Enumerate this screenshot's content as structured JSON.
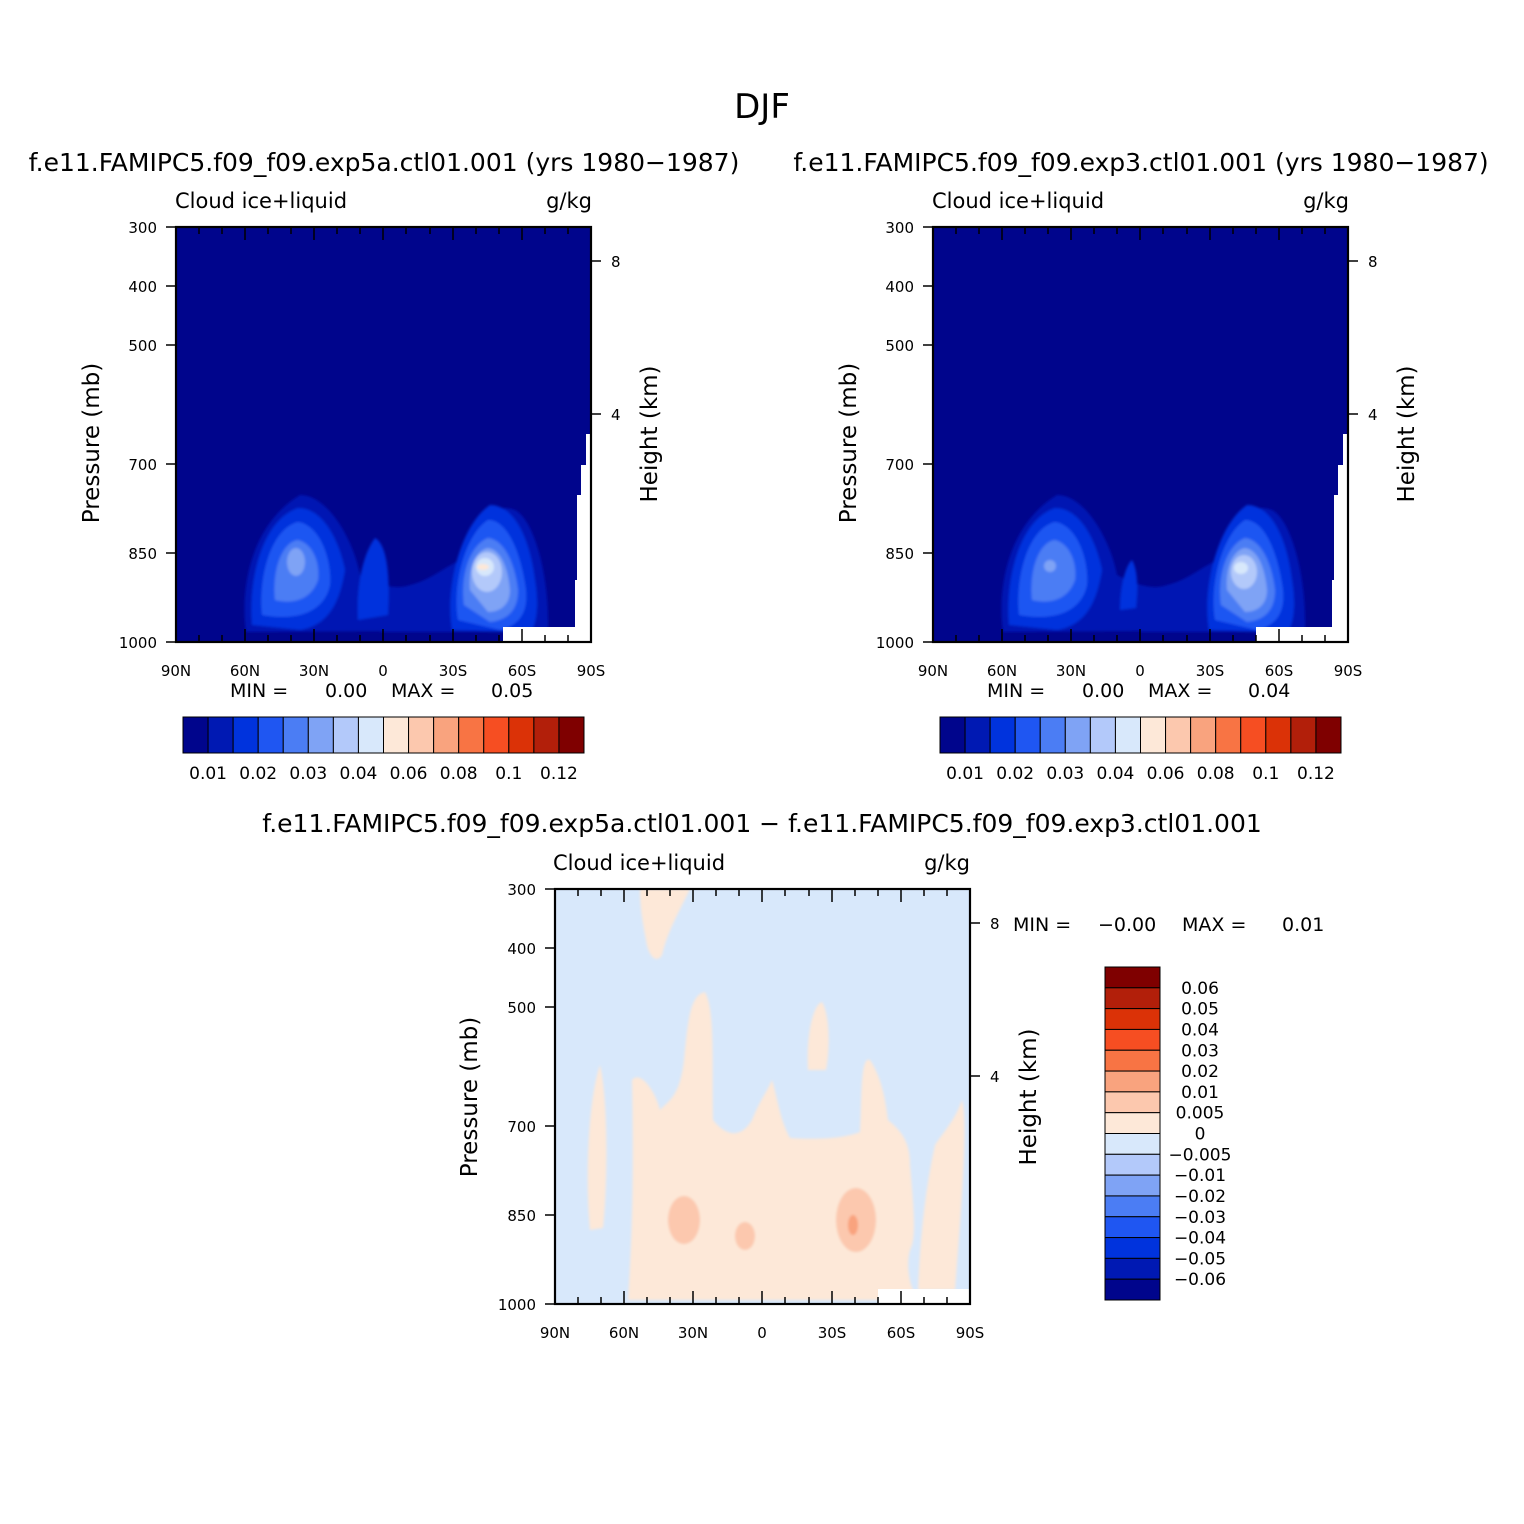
{
  "figure": {
    "title": "DJF"
  },
  "panels": [
    {
      "case_title": "f.e11.FAMIPC5.f09_f09.exp5a.ctl01.001 (yrs 1980-1987)",
      "left_label": "Cloud ice+liquid",
      "right_label": "g/kg",
      "ylabel": "Pressure (mb)",
      "y2label": "Height (km)",
      "stats": {
        "min_label": "MIN =",
        "min": "0.00",
        "max_label": "MAX =",
        "max": "0.05"
      }
    },
    {
      "case_title": "f.e11.FAMIPC5.f09_f09.exp3.ctl01.001 (yrs 1980-1987)",
      "left_label": "Cloud ice+liquid",
      "right_label": "g/kg",
      "ylabel": "Pressure (mb)",
      "y2label": "Height (km)",
      "stats": {
        "min_label": "MIN =",
        "min": "0.00",
        "max_label": "MAX =",
        "max": "0.04"
      }
    },
    {
      "case_title": "f.e11.FAMIPC5.f09_f09.exp5a.ctl01.001 - f.e11.FAMIPC5.f09_f09.exp3.ctl01.001",
      "left_label": "Cloud ice+liquid",
      "right_label": "g/kg",
      "ylabel": "Pressure (mb)",
      "y2label": "Height (km)",
      "stats": {
        "min_label": "MIN =",
        "min": "-0.00",
        "max_label": "MAX =",
        "max": "0.01"
      }
    }
  ],
  "axes": {
    "x_ticks": [
      "90N",
      "60N",
      "30N",
      "0",
      "30S",
      "60S",
      "90S"
    ],
    "x_values": [
      90,
      60,
      30,
      0,
      -30,
      -60,
      -90
    ],
    "y_ticks": [
      "300",
      "400",
      "500",
      "700",
      "850",
      "1000"
    ],
    "y_values": [
      300,
      400,
      500,
      700,
      850,
      1000
    ],
    "y2_ticks": [
      "8",
      "4"
    ],
    "y2_values_km": [
      8,
      4
    ]
  },
  "colorbars": {
    "field": {
      "labels": [
        "0.01",
        "0.02",
        "0.03",
        "0.04",
        "0.06",
        "0.08",
        "0.1",
        "0.12"
      ],
      "colors": [
        "#00058c",
        "#0019b3",
        "#0033dd",
        "#1f56f2",
        "#4b7df4",
        "#7fa3f5",
        "#b3c9fa",
        "#d8e8fb",
        "#fde8d8",
        "#fcc8ae",
        "#f9a37e",
        "#f87444",
        "#f64e22",
        "#db3207",
        "#b21f0a",
        "#7f0000"
      ]
    },
    "diff": {
      "labels": [
        "0.06",
        "0.05",
        "0.04",
        "0.03",
        "0.02",
        "0.01",
        "0.005",
        "0",
        "-0.005",
        "-0.01",
        "-0.02",
        "-0.03",
        "-0.04",
        "-0.05",
        "-0.06"
      ],
      "colors": [
        "#7f0000",
        "#b21f0a",
        "#db3207",
        "#f64e22",
        "#f87444",
        "#f9a37e",
        "#fcc8ae",
        "#fde8d8",
        "#d8e8fb",
        "#b3c9fa",
        "#7fa3f5",
        "#4b7df4",
        "#1f56f2",
        "#0033dd",
        "#0019b3",
        "#00058c"
      ]
    }
  },
  "chart_data": [
    {
      "type": "heatmap",
      "title": "f.e11.FAMIPC5.f09_f09.exp5a.ctl01.001 (yrs 1980-1987)",
      "variable": "Cloud ice+liquid",
      "units": "g/kg",
      "x": [
        90,
        60,
        30,
        0,
        -30,
        -60,
        -90
      ],
      "y": [
        300,
        400,
        500,
        700,
        850,
        1000
      ],
      "xlabel": "",
      "ylabel": "Pressure (mb)",
      "y2label": "Height (km)",
      "min": 0.0,
      "max": 0.05,
      "features": [
        {
          "lat": 38,
          "p": 855,
          "peak": 0.035
        },
        {
          "lat": 3,
          "p": 890,
          "peak": 0.02
        },
        {
          "lat": -45,
          "p": 860,
          "peak": 0.05
        }
      ]
    },
    {
      "type": "heatmap",
      "title": "f.e11.FAMIPC5.f09_f09.exp3.ctl01.001 (yrs 1980-1987)",
      "variable": "Cloud ice+liquid",
      "units": "g/kg",
      "x": [
        90,
        60,
        30,
        0,
        -30,
        -60,
        -90
      ],
      "y": [
        300,
        400,
        500,
        700,
        850,
        1000
      ],
      "xlabel": "",
      "ylabel": "Pressure (mb)",
      "y2label": "Height (km)",
      "min": 0.0,
      "max": 0.04,
      "features": [
        {
          "lat": 38,
          "p": 860,
          "peak": 0.035
        },
        {
          "lat": 3,
          "p": 890,
          "peak": 0.015
        },
        {
          "lat": -45,
          "p": 865,
          "peak": 0.04
        }
      ]
    },
    {
      "type": "heatmap",
      "title": "f.e11.FAMIPC5.f09_f09.exp5a.ctl01.001 - f.e11.FAMIPC5.f09_f09.exp3.ctl01.001",
      "variable": "Cloud ice+liquid",
      "units": "g/kg",
      "x": [
        90,
        60,
        30,
        0,
        -30,
        -60,
        -90
      ],
      "y": [
        300,
        400,
        500,
        700,
        850,
        1000
      ],
      "xlabel": "",
      "ylabel": "Pressure (mb)",
      "y2label": "Height (km)",
      "min": -0.0,
      "max": 0.01,
      "features": [
        {
          "lat": 35,
          "p": 870,
          "peak": 0.01
        },
        {
          "lat": 9,
          "p": 880,
          "peak": 0.01
        },
        {
          "lat": -40,
          "p": 870,
          "peak": 0.01
        }
      ]
    }
  ]
}
